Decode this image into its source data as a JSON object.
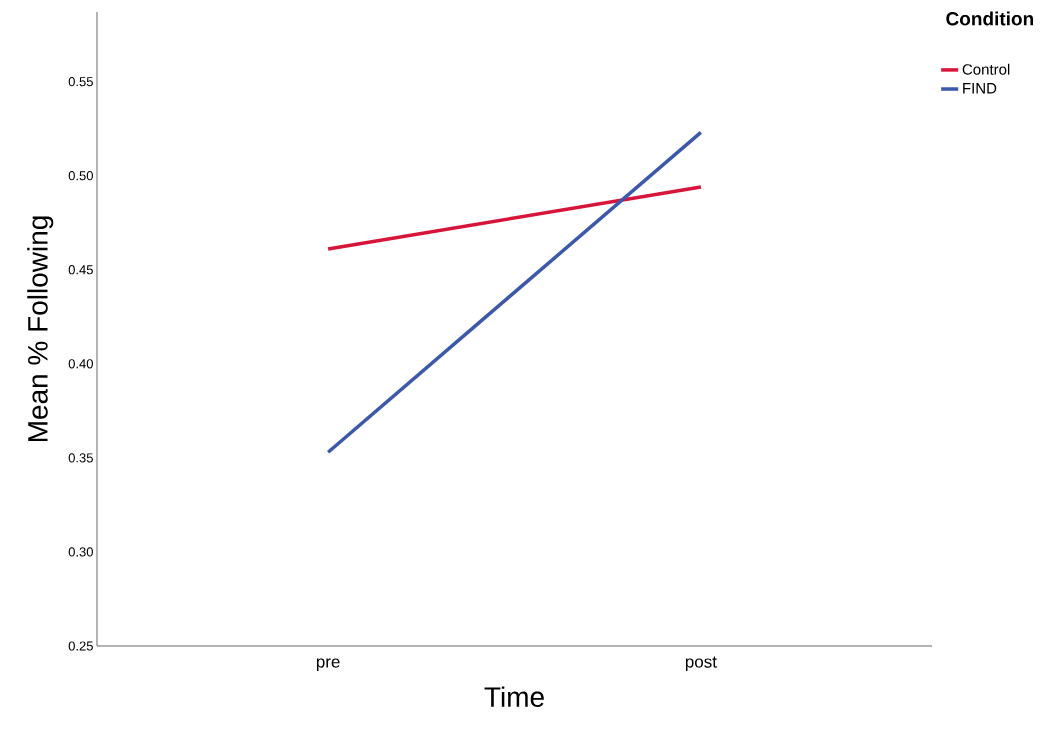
{
  "chart_data": {
    "type": "line",
    "xlabel": "Time",
    "ylabel": "Mean % Following",
    "legend_title": "Condition",
    "categories": [
      "pre",
      "post"
    ],
    "series": [
      {
        "name": "Control",
        "color": "#d7153a",
        "values": [
          0.461,
          0.494
        ]
      },
      {
        "name": "FIND",
        "color": "#3c58a8",
        "values": [
          0.353,
          0.523
        ]
      }
    ],
    "ylim": [
      0.25,
      0.587
    ],
    "yticks": [
      {
        "value": 0.25,
        "label": "0.25"
      },
      {
        "value": 0.3,
        "label": "0.30"
      },
      {
        "value": 0.35,
        "label": "0.35"
      },
      {
        "value": 0.4,
        "label": "0.40"
      },
      {
        "value": 0.45,
        "label": "0.45"
      },
      {
        "value": 0.5,
        "label": "0.50"
      },
      {
        "value": 0.55,
        "label": "0.55"
      }
    ],
    "grid": false,
    "legend": "top right",
    "marker": "none",
    "line_style": "solid"
  }
}
